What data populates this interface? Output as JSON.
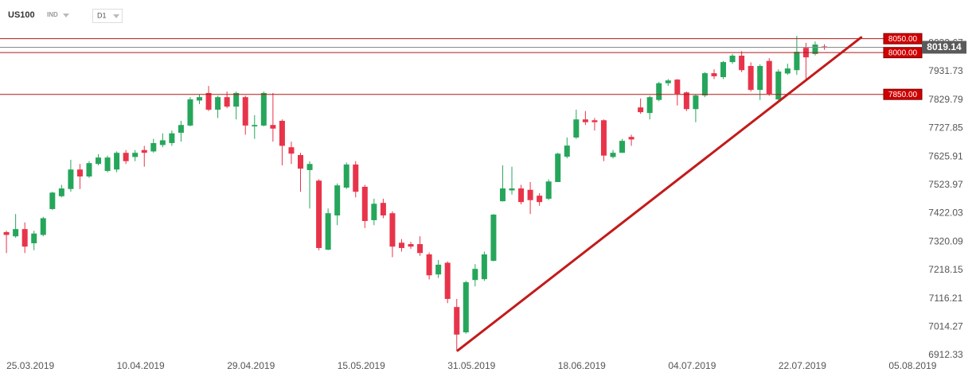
{
  "header": {
    "symbol": "US100",
    "category": "IND",
    "timeframe": "D1"
  },
  "chart_data": {
    "type": "candlestick",
    "up_color": "#26a65b",
    "down_color": "#e8344a",
    "open": [
      7355,
      7340,
      7366,
      7315,
      7345,
      7438,
      7484,
      7510,
      7580,
      7555,
      7600,
      7575,
      7580,
      7640,
      7625,
      7650,
      7645,
      7668,
      7675,
      7712,
      7738,
      7828,
      7855,
      7795,
      7840,
      7806,
      7840,
      7735,
      7738,
      7740,
      7755,
      7660,
      7632,
      7578,
      7540,
      7292,
      7415,
      7515,
      7598,
      7518,
      7398,
      7460,
      7423,
      7317,
      7312,
      7312,
      7275,
      7203,
      7245,
      7086,
      6995,
      7183,
      7186,
      7252,
      7466,
      7505,
      7512,
      7507,
      7486,
      7475,
      7535,
      7626,
      7695,
      7760,
      7757,
      7757,
      7625,
      7640,
      7697,
      7803,
      7783,
      7830,
      7890,
      7903,
      7857,
      7797,
      7846,
      7926,
      7912,
      7966,
      7989,
      7952,
      7866,
      7970,
      7832,
      7925,
      7937,
      8017,
      7995,
      8022
    ],
    "high": [
      7360,
      7420,
      7390,
      7360,
      7410,
      7500,
      7525,
      7615,
      7600,
      7610,
      7635,
      7630,
      7645,
      7650,
      7650,
      7665,
      7690,
      7710,
      7720,
      7755,
      7840,
      7850,
      7880,
      7845,
      7860,
      7860,
      7845,
      7775,
      7860,
      7855,
      7760,
      7680,
      7640,
      7610,
      7545,
      7440,
      7530,
      7605,
      7610,
      7525,
      7475,
      7475,
      7430,
      7330,
      7320,
      7340,
      7282,
      7255,
      7250,
      7115,
      7180,
      7240,
      7285,
      7420,
      7595,
      7590,
      7525,
      7535,
      7495,
      7545,
      7640,
      7695,
      7795,
      7790,
      7765,
      7760,
      7650,
      7690,
      7705,
      7835,
      7845,
      7895,
      7905,
      7905,
      7860,
      7850,
      7930,
      7940,
      7970,
      7995,
      8005,
      7965,
      7958,
      7980,
      7940,
      7960,
      8060,
      8035,
      8040,
      8030
    ],
    "low": [
      7280,
      7335,
      7280,
      7290,
      7340,
      7435,
      7480,
      7500,
      7510,
      7550,
      7595,
      7570,
      7570,
      7600,
      7610,
      7590,
      7640,
      7660,
      7665,
      7680,
      7735,
      7815,
      7790,
      7765,
      7800,
      7760,
      7705,
      7690,
      7735,
      7680,
      7595,
      7600,
      7500,
      7440,
      7290,
      7290,
      7380,
      7510,
      7480,
      7370,
      7380,
      7405,
      7265,
      7285,
      7295,
      7270,
      7185,
      7190,
      7100,
      6930,
      6990,
      7160,
      7180,
      7250,
      7465,
      7490,
      7455,
      7420,
      7450,
      7470,
      7535,
      7620,
      7690,
      7740,
      7720,
      7610,
      7620,
      7640,
      7665,
      7780,
      7760,
      7825,
      7880,
      7810,
      7790,
      7750,
      7840,
      7905,
      7905,
      7960,
      7930,
      7860,
      7830,
      7845,
      7825,
      7920,
      7920,
      7900,
      7990,
      8010
    ],
    "close": [
      7345,
      7366,
      7303,
      7350,
      7405,
      7497,
      7512,
      7580,
      7555,
      7603,
      7623,
      7623,
      7640,
      7610,
      7640,
      7640,
      7675,
      7685,
      7710,
      7740,
      7832,
      7840,
      7795,
      7840,
      7806,
      7855,
      7738,
      7740,
      7855,
      7727,
      7665,
      7637,
      7583,
      7600,
      7298,
      7423,
      7523,
      7598,
      7500,
      7395,
      7457,
      7415,
      7303,
      7298,
      7303,
      7280,
      7200,
      7238,
      7115,
      6987,
      7175,
      7223,
      7275,
      7418,
      7512,
      7512,
      7463,
      7470,
      7463,
      7537,
      7637,
      7666,
      7760,
      7750,
      7750,
      7630,
      7640,
      7683,
      7688,
      7786,
      7840,
      7890,
      7900,
      7852,
      7797,
      7846,
      7926,
      7915,
      7966,
      7989,
      7937,
      7866,
      7952,
      7852,
      7932,
      7943,
      8003,
      7983,
      8029,
      8019.14
    ],
    "xlim": [
      -0.7,
      105.5
    ],
    "xticks": [
      {
        "value": 2,
        "label": "25.03.2019"
      },
      {
        "value": 14,
        "label": "10.04.2019"
      },
      {
        "value": 26,
        "label": "29.04.2019"
      },
      {
        "value": 38,
        "label": "15.05.2019"
      },
      {
        "value": 50,
        "label": "31.05.2019"
      },
      {
        "value": 62,
        "label": "18.06.2019"
      },
      {
        "value": 74,
        "label": "04.07.2019"
      },
      {
        "value": 86,
        "label": "22.07.2019"
      },
      {
        "value": 98,
        "label": "05.08.2019"
      }
    ],
    "ylim": [
      6898,
      8189
    ],
    "yticks": [
      6912.33,
      7014.27,
      7116.21,
      7218.15,
      7320.09,
      7422.03,
      7523.97,
      7625.91,
      7727.85,
      7829.79,
      7931.73,
      8033.67
    ],
    "levels": [
      {
        "value": 8050,
        "label": "8050.00"
      },
      {
        "value": 8000,
        "label": "8000.00"
      },
      {
        "value": 7850,
        "label": "7850.00"
      }
    ],
    "level_color": "#b01818",
    "price": {
      "value": 8019.14,
      "label": "8019.14"
    },
    "trendline": {
      "x": [
        49.1,
        93.0
      ],
      "y": [
        6929.5,
        8054.5
      ],
      "color": "#c41a1a"
    }
  }
}
